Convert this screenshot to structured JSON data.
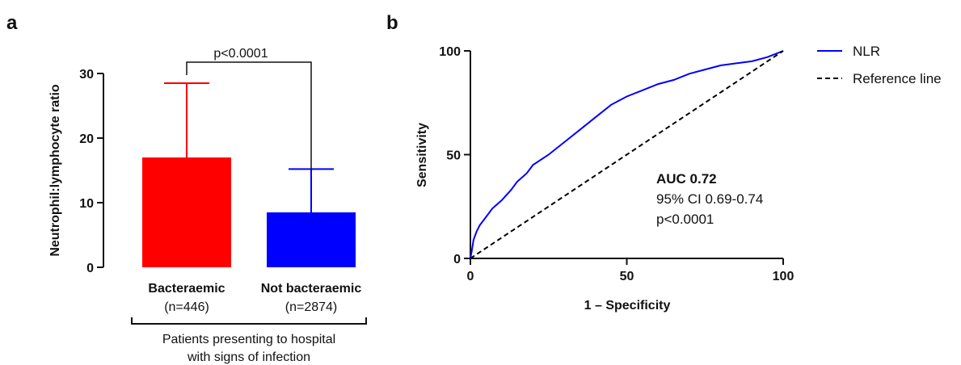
{
  "panels": {
    "a": "a",
    "b": "b"
  },
  "chart_data": [
    {
      "type": "bar",
      "categories": [
        "Bacteraemic",
        "Not bacteraemic"
      ],
      "category_sublabels": [
        "(n=446)",
        "(n=2874)"
      ],
      "values": [
        17.0,
        8.5
      ],
      "error_upper": [
        28.5,
        15.2
      ],
      "colors": [
        "#ff0000",
        "#0000ff"
      ],
      "ylabel": "Neutrophil:lymphocyte ratio",
      "ylim": [
        0,
        30
      ],
      "yticks": [
        "0",
        "10",
        "20",
        "30"
      ],
      "significance": "p<0.0001",
      "group_label_line1": "Patients presenting to hospital",
      "group_label_line2": "with signs of infection"
    },
    {
      "type": "line",
      "xlabel": "1 – Specificity",
      "ylabel": "Sensitivity",
      "xlim": [
        0,
        100
      ],
      "ylim": [
        0,
        100
      ],
      "xticks": [
        "0",
        "50",
        "100"
      ],
      "yticks": [
        "0",
        "50",
        "100"
      ],
      "series": [
        {
          "name": "NLR",
          "color": "#0000ff",
          "x": [
            0,
            0.5,
            1,
            2,
            3,
            5,
            7,
            10,
            13,
            15,
            18,
            20,
            25,
            30,
            35,
            40,
            45,
            50,
            55,
            60,
            65,
            70,
            75,
            80,
            85,
            90,
            95,
            100
          ],
          "y": [
            0,
            4,
            9,
            13,
            16,
            20,
            24,
            28,
            33,
            37,
            41,
            45,
            50,
            56,
            62,
            68,
            74,
            78,
            81,
            84,
            86,
            89,
            91,
            93,
            94,
            95,
            97,
            100
          ]
        },
        {
          "name": "Reference line",
          "color": "#000000",
          "dashed": true,
          "x": [
            0,
            100
          ],
          "y": [
            0,
            100
          ]
        }
      ],
      "annotation": {
        "title": "AUC 0.72",
        "line2": "95% CI 0.69-0.74",
        "line3": "p<0.0001"
      }
    }
  ]
}
